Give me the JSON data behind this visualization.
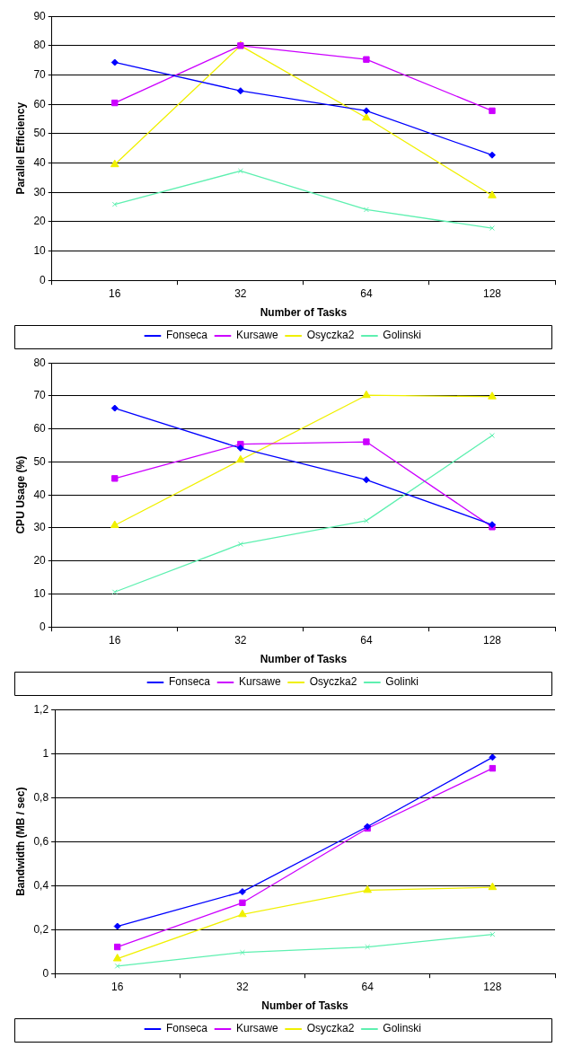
{
  "chart_data": [
    {
      "type": "line",
      "categories": [
        "16",
        "32",
        "64",
        "128"
      ],
      "xlabel": "Number of Tasks",
      "ylabel": "Parallel Efficiency",
      "ylim": [
        0,
        90
      ],
      "yticks": [
        0,
        10,
        20,
        30,
        40,
        50,
        60,
        70,
        80,
        90
      ],
      "grid": "y",
      "legend": "bottom",
      "series": [
        {
          "name": "Fonseca",
          "color": "#0000ff",
          "marker": "diamond",
          "values": [
            74.3,
            64.6,
            57.8,
            42.7
          ]
        },
        {
          "name": "Kursawe",
          "color": "#cc00ff",
          "marker": "square",
          "values": [
            60.5,
            80,
            75.3,
            57.8
          ]
        },
        {
          "name": "Osyczka2",
          "color": "#f0f000",
          "marker": "triangle",
          "values": [
            39.5,
            80,
            55.4,
            28.9
          ]
        },
        {
          "name": "Golinski",
          "color": "#5ef0b0",
          "marker": "cross",
          "values": [
            25.9,
            37.3,
            24.1,
            17.8
          ]
        }
      ]
    },
    {
      "type": "line",
      "categories": [
        "16",
        "32",
        "64",
        "128"
      ],
      "xlabel": "Number of Tasks",
      "ylabel": "CPU Usage (%)",
      "ylim": [
        0,
        80
      ],
      "yticks": [
        0,
        10,
        20,
        30,
        40,
        50,
        60,
        70,
        80
      ],
      "grid": "y",
      "legend": "bottom",
      "series": [
        {
          "name": "Fonseca",
          "color": "#0000ff",
          "marker": "diamond",
          "values": [
            66.3,
            54.2,
            44.6,
            31.0
          ]
        },
        {
          "name": "Kursawe",
          "color": "#cc00ff",
          "marker": "square",
          "values": [
            45.0,
            55.4,
            56.1,
            30.3
          ]
        },
        {
          "name": "Osyczka2",
          "color": "#f0f000",
          "marker": "triangle",
          "values": [
            30.8,
            50.6,
            70.2,
            69.8
          ]
        },
        {
          "name": "Golinki",
          "color": "#5ef0b0",
          "marker": "cross",
          "values": [
            10.6,
            25.1,
            32.2,
            58.0
          ]
        }
      ]
    },
    {
      "type": "line",
      "categories": [
        "16",
        "32",
        "64",
        "128"
      ],
      "xlabel": "Number of Tasks",
      "ylabel": "Bandwidth (MB / sec)",
      "ylim": [
        0,
        1.2
      ],
      "yticks": [
        0,
        {
          "value": 0.2,
          "label": "0,2"
        },
        {
          "value": 0.4,
          "label": "0,4"
        },
        {
          "value": 0.6,
          "label": "0,6"
        },
        {
          "value": 0.8,
          "label": "0,8"
        },
        1,
        {
          "value": 1.2,
          "label": "1,2"
        }
      ],
      "grid": "y",
      "legend": "bottom",
      "series": [
        {
          "name": "Fonseca",
          "color": "#0000ff",
          "marker": "diamond",
          "values": [
            0.215,
            0.372,
            0.668,
            0.983
          ]
        },
        {
          "name": "Kursawe",
          "color": "#cc00ff",
          "marker": "square",
          "values": [
            0.121,
            0.322,
            0.66,
            0.933
          ]
        },
        {
          "name": "Osyczka2",
          "color": "#f0f000",
          "marker": "triangle",
          "values": [
            0.068,
            0.269,
            0.379,
            0.392
          ]
        },
        {
          "name": "Golinski",
          "color": "#5ef0b0",
          "marker": "cross",
          "values": [
            0.034,
            0.096,
            0.121,
            0.178
          ]
        }
      ]
    }
  ]
}
